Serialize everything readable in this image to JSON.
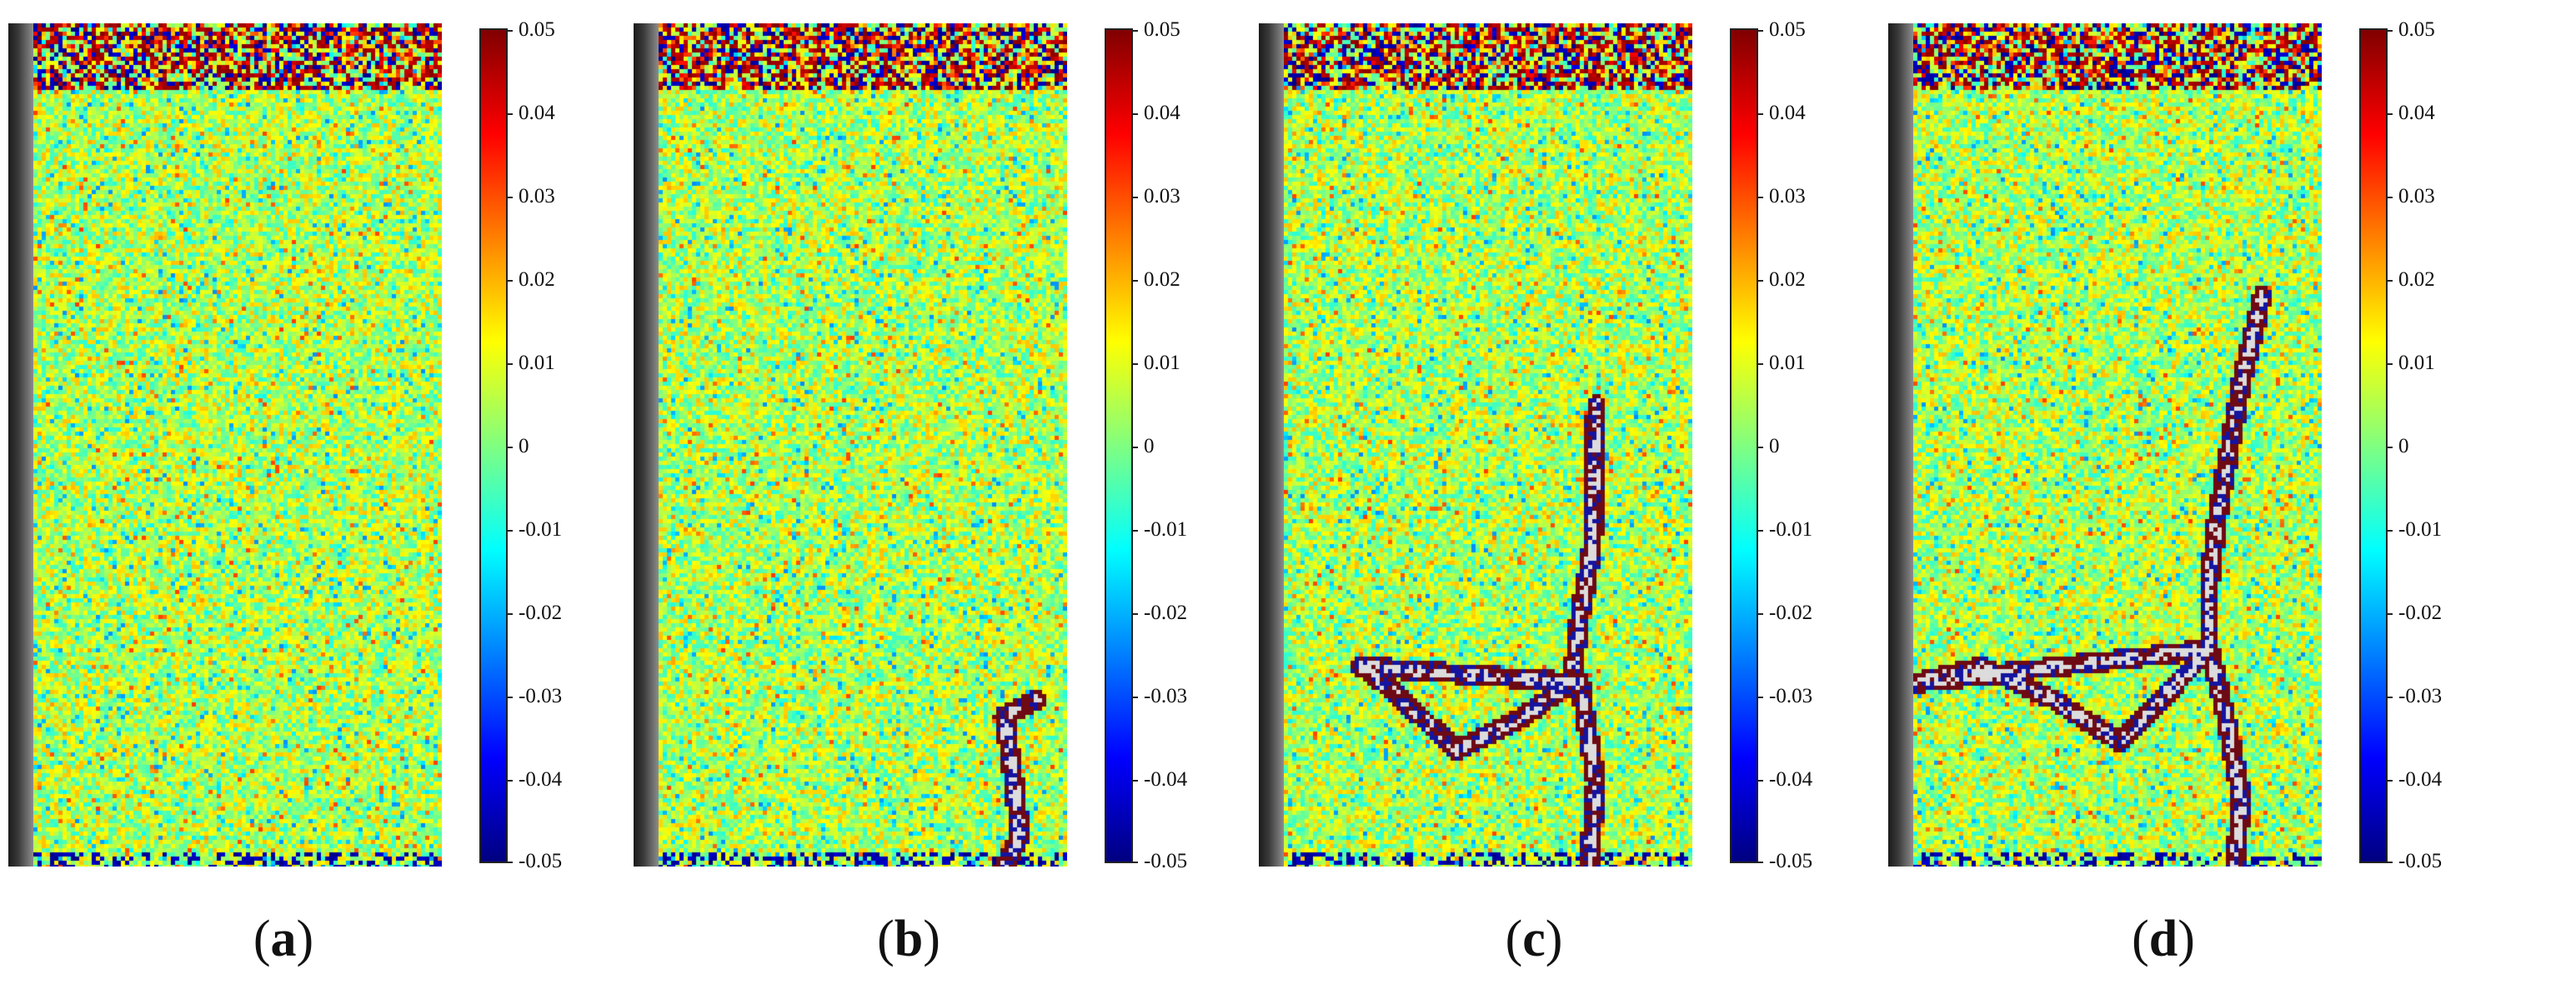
{
  "colorbar": {
    "ticks": [
      "0.05",
      "0.04",
      "0.03",
      "0.02",
      "0.01",
      "0",
      "-0.01",
      "-0.02",
      "-0.03",
      "-0.04",
      "-0.05"
    ]
  },
  "panels": [
    {
      "label": "a",
      "crack": "none"
    },
    {
      "label": "b",
      "crack": "short-right-bottom"
    },
    {
      "label": "c",
      "crack": "middle-cross"
    },
    {
      "label": "d",
      "crack": "long-full"
    }
  ]
}
